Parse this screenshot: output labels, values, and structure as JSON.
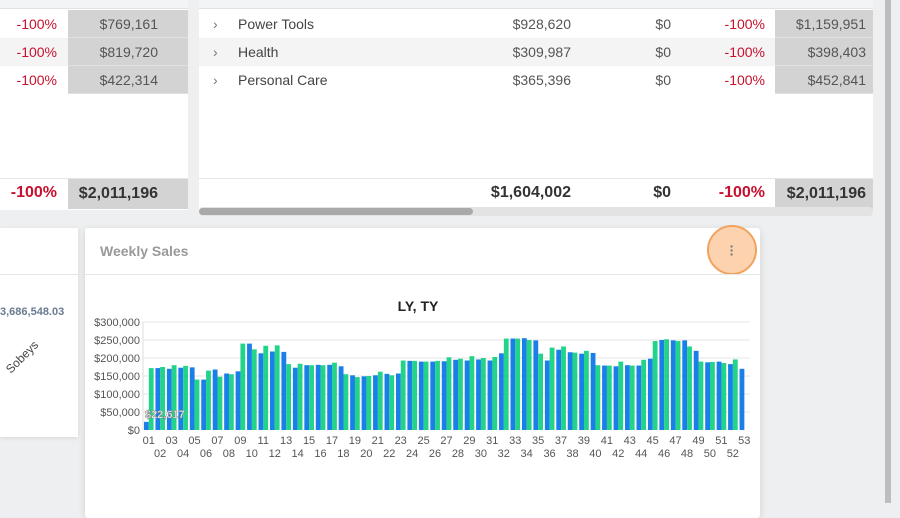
{
  "left_table": {
    "rows": [
      {
        "pct": "-100%",
        "total": "$769,161"
      },
      {
        "pct": "-100%",
        "total": "$819,720"
      },
      {
        "pct": "-100%",
        "total": "$422,314"
      }
    ],
    "footer": {
      "pct": "-100%",
      "total": "$2,011,196"
    }
  },
  "right_table": {
    "rows": [
      {
        "name": "Power Tools",
        "ly": "$928,620",
        "ty": "$0",
        "pct": "-100%",
        "total": "$1,159,951"
      },
      {
        "name": "Health",
        "ly": "$309,987",
        "ty": "$0",
        "pct": "-100%",
        "total": "$398,403"
      },
      {
        "name": "Personal Care",
        "ly": "$365,396",
        "ty": "$0",
        "pct": "-100%",
        "total": "$452,841"
      }
    ],
    "footer": {
      "ly": "$1,604,002",
      "ty": "$0",
      "pct": "-100%",
      "total": "$2,011,196"
    }
  },
  "left_card": {
    "value_label": "3,686,548.03",
    "category": "Sobeys"
  },
  "card": {
    "title": "Weekly Sales",
    "menu_icon": "kebab-menu-icon"
  },
  "colors": {
    "ly": "#1a7fe8",
    "ty": "#22d38a",
    "negative": "#c8102e",
    "menu_highlight": "#fcd3ae"
  },
  "chart_data": {
    "type": "bar",
    "title": "LY, TY",
    "xlabel": "",
    "ylabel": "",
    "ylim": [
      0,
      300000
    ],
    "yticks": [
      "$0",
      "$50,000",
      "$100,000",
      "$150,000",
      "$200,000",
      "$250,000",
      "$300,000"
    ],
    "categories": [
      "01",
      "02",
      "03",
      "04",
      "05",
      "06",
      "07",
      "08",
      "09",
      "10",
      "11",
      "12",
      "13",
      "14",
      "15",
      "16",
      "17",
      "18",
      "19",
      "20",
      "21",
      "22",
      "23",
      "24",
      "25",
      "26",
      "27",
      "28",
      "29",
      "30",
      "31",
      "32",
      "33",
      "34",
      "35",
      "36",
      "37",
      "38",
      "39",
      "40",
      "41",
      "42",
      "43",
      "44",
      "45",
      "46",
      "47",
      "48",
      "49",
      "50",
      "51",
      "52",
      "53"
    ],
    "series": [
      {
        "name": "LY",
        "values": [
          22617,
          172000,
          170000,
          173000,
          174000,
          140000,
          168000,
          157000,
          163000,
          240000,
          213000,
          218000,
          217000,
          173000,
          180000,
          181000,
          181000,
          177000,
          152000,
          149000,
          152000,
          156000,
          157000,
          192000,
          190000,
          190000,
          191000,
          195000,
          193000,
          196000,
          193000,
          213000,
          254000,
          255000,
          249000,
          193000,
          223000,
          216000,
          212000,
          214000,
          179000,
          177000,
          180000,
          179000,
          198000,
          250000,
          249000,
          249000,
          220000,
          188000,
          190000,
          183000,
          170000
        ]
      },
      {
        "name": "TY",
        "values": [
          172000,
          175000,
          180000,
          178000,
          140000,
          165000,
          148000,
          155000,
          240000,
          224000,
          234000,
          235000,
          183000,
          184000,
          180000,
          180000,
          187000,
          155000,
          147000,
          150000,
          162000,
          152000,
          193000,
          192000,
          190000,
          192000,
          202000,
          198000,
          205000,
          200000,
          203000,
          254000,
          254000,
          250000,
          212000,
          229000,
          232000,
          215000,
          220000,
          180000,
          179000,
          190000,
          179000,
          195000,
          247000,
          252000,
          247000,
          232000,
          190000,
          189000,
          186000,
          196000,
          null
        ]
      }
    ],
    "data_labels": {
      "first_ly": "$22,617"
    },
    "grid": true
  }
}
